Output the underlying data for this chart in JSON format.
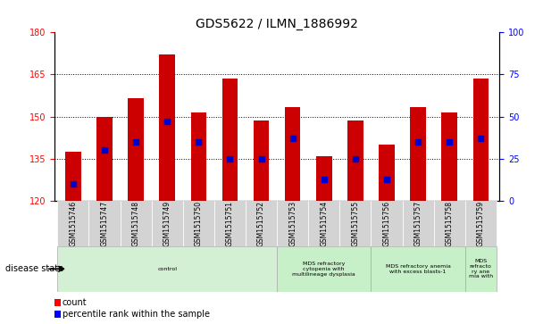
{
  "title": "GDS5622 / ILMN_1886992",
  "samples": [
    "GSM1515746",
    "GSM1515747",
    "GSM1515748",
    "GSM1515749",
    "GSM1515750",
    "GSM1515751",
    "GSM1515752",
    "GSM1515753",
    "GSM1515754",
    "GSM1515755",
    "GSM1515756",
    "GSM1515757",
    "GSM1515758",
    "GSM1515759"
  ],
  "counts": [
    137.5,
    150.0,
    156.5,
    172.0,
    151.5,
    163.5,
    148.5,
    153.5,
    136.0,
    148.5,
    140.0,
    153.5,
    151.5,
    163.5
  ],
  "percentile_ranks": [
    10,
    30,
    35,
    47,
    35,
    25,
    25,
    37,
    13,
    25,
    13,
    35,
    35,
    37
  ],
  "bar_color": "#cc0000",
  "dot_color": "#0000cc",
  "ymin": 120,
  "ymax": 180,
  "yticks": [
    120,
    135,
    150,
    165,
    180
  ],
  "y2min": 0,
  "y2max": 100,
  "y2ticks": [
    0,
    25,
    50,
    75,
    100
  ],
  "grid_color": "#000000",
  "bg_color": "#ffffff",
  "plot_bg": "#ffffff",
  "disease_groups": [
    {
      "label": "control",
      "start": 0,
      "end": 7,
      "color": "#d4f0d4"
    },
    {
      "label": "MDS refractory\ncytopenia with\nmultilineage dysplasia",
      "start": 7,
      "end": 10,
      "color": "#c8f0c8"
    },
    {
      "label": "MDS refractory anemia\nwith excess blasts-1",
      "start": 10,
      "end": 13,
      "color": "#c8f0c8"
    },
    {
      "label": "MDS\nrefracto\nry ane\nmia with",
      "start": 13,
      "end": 14,
      "color": "#c8f0c8"
    }
  ],
  "legend_count_label": "count",
  "legend_percentile_label": "percentile rank within the sample",
  "disease_state_label": "disease state"
}
